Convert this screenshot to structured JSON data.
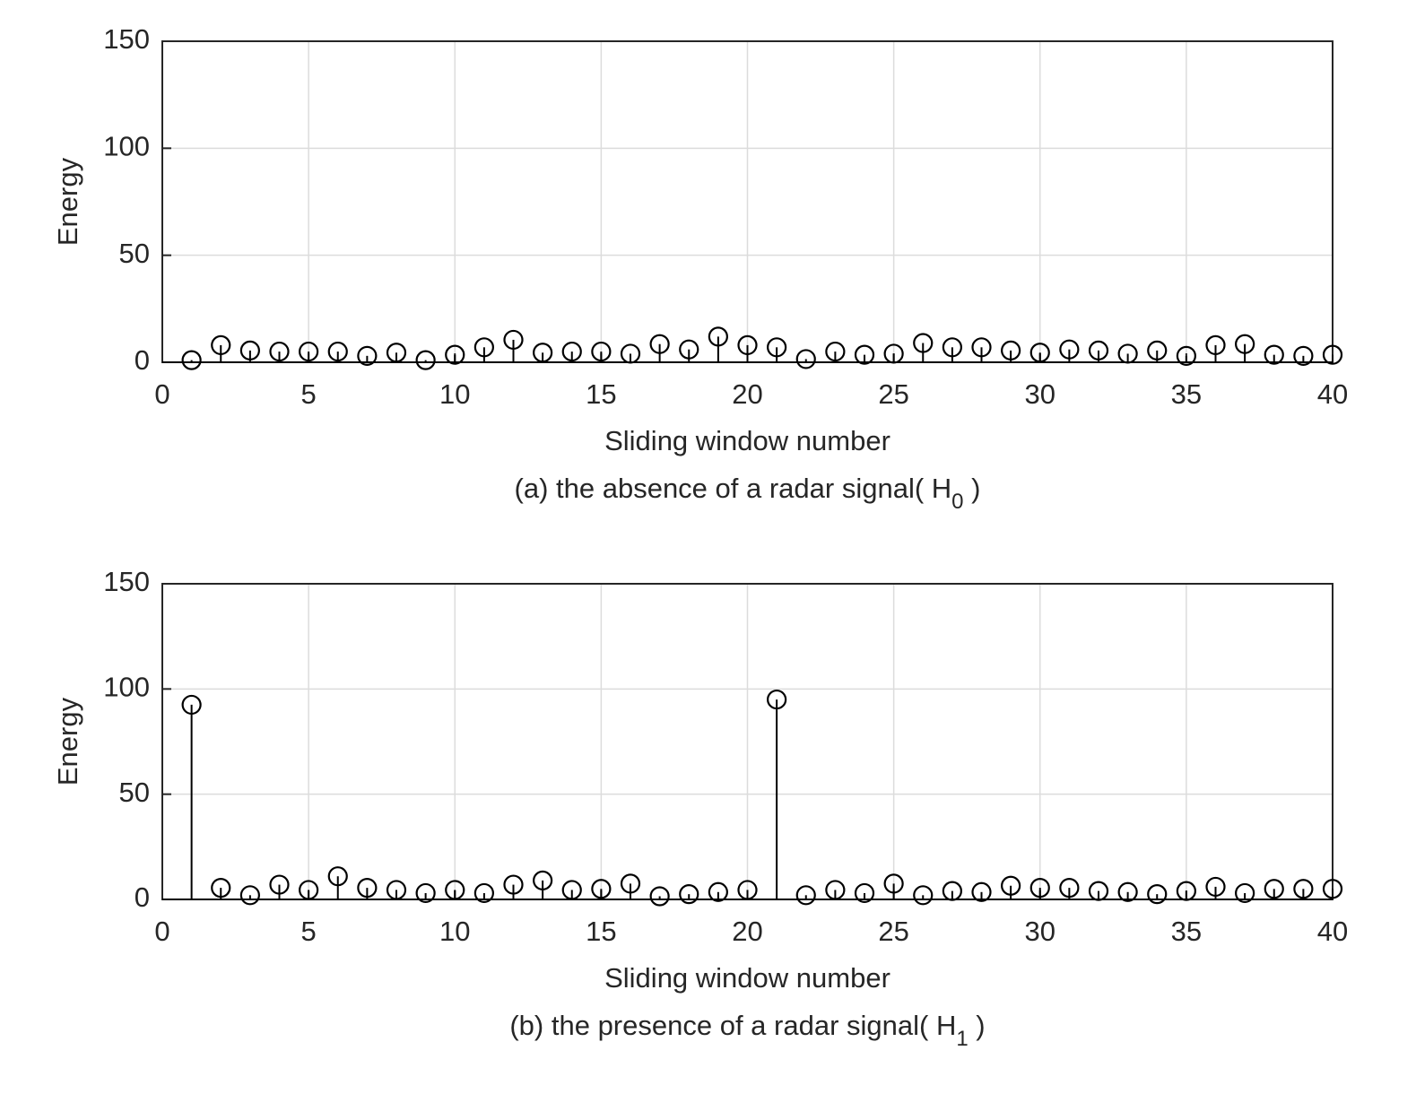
{
  "chart_data": [
    {
      "type": "stem",
      "xlabel": "Sliding window number",
      "ylabel": "Energy",
      "caption": "(a) the absence of a radar signal( H",
      "caption_subscript": "0",
      "caption_end": " )",
      "x": [
        1,
        2,
        3,
        4,
        5,
        6,
        7,
        8,
        9,
        10,
        11,
        12,
        13,
        14,
        15,
        16,
        17,
        18,
        19,
        20,
        21,
        22,
        23,
        24,
        25,
        26,
        27,
        28,
        29,
        30,
        31,
        32,
        33,
        34,
        35,
        36,
        37,
        38,
        39,
        40
      ],
      "values": [
        1,
        8,
        5.5,
        5,
        5,
        5,
        3,
        4.5,
        1,
        3.5,
        7,
        10.5,
        4.5,
        5,
        5,
        4,
        8.5,
        6,
        12,
        8,
        7,
        1.5,
        5,
        3.5,
        4,
        9,
        7,
        7,
        5.5,
        4.5,
        6,
        5.5,
        4,
        5.5,
        3,
        8,
        8.5,
        3.5,
        3,
        3.5
      ],
      "color": "#000000",
      "xlim": [
        0,
        40
      ],
      "ylim": [
        0,
        150
      ],
      "xticks": [
        0,
        5,
        10,
        15,
        20,
        25,
        30,
        35,
        40
      ],
      "yticks": [
        0,
        50,
        100,
        150
      ],
      "grid": true
    },
    {
      "type": "stem",
      "xlabel": "Sliding window number",
      "ylabel": "Energy",
      "caption": "(b) the presence of a radar signal( H",
      "caption_subscript": "1",
      "caption_end": " )",
      "x": [
        1,
        2,
        3,
        4,
        5,
        6,
        7,
        8,
        9,
        10,
        11,
        12,
        13,
        14,
        15,
        16,
        17,
        18,
        19,
        20,
        21,
        22,
        23,
        24,
        25,
        26,
        27,
        28,
        29,
        30,
        31,
        32,
        33,
        34,
        35,
        36,
        37,
        38,
        39,
        40
      ],
      "values": [
        92.5,
        5.5,
        2,
        7,
        4.5,
        11,
        5.5,
        4.5,
        3,
        4.5,
        3,
        7,
        9,
        4.5,
        5,
        7.5,
        1.5,
        2.5,
        3.5,
        4.5,
        95,
        2,
        4.5,
        3,
        7.5,
        2,
        4,
        3.5,
        6.5,
        5.5,
        5.5,
        4,
        3.5,
        2.5,
        4,
        6,
        3,
        5,
        5,
        5
      ],
      "color": "#000000",
      "xlim": [
        0,
        40
      ],
      "ylim": [
        0,
        150
      ],
      "xticks": [
        0,
        5,
        10,
        15,
        20,
        25,
        30,
        35,
        40
      ],
      "yticks": [
        0,
        50,
        100,
        150
      ],
      "grid": true
    }
  ]
}
